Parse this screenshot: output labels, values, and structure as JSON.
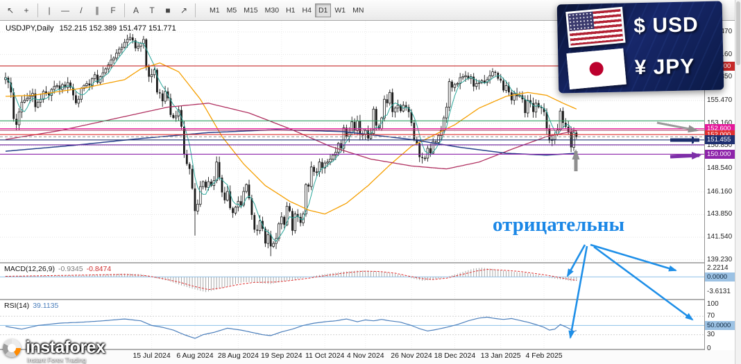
{
  "toolbar": {
    "tools": [
      {
        "name": "cursor",
        "glyph": "↖"
      },
      {
        "name": "crosshair",
        "glyph": "+"
      },
      {
        "name": "sep"
      },
      {
        "name": "vertical-line",
        "glyph": "|"
      },
      {
        "name": "horizontal-line",
        "glyph": "—"
      },
      {
        "name": "trend-line",
        "glyph": "/"
      },
      {
        "name": "channel",
        "glyph": "∥"
      },
      {
        "name": "fibonacci",
        "glyph": "F"
      },
      {
        "name": "sep"
      },
      {
        "name": "text",
        "glyph": "A"
      },
      {
        "name": "text-label",
        "glyph": "T"
      },
      {
        "name": "shapes",
        "glyph": "■"
      },
      {
        "name": "arrows",
        "glyph": "↗"
      },
      {
        "name": "sep"
      }
    ],
    "timeframes": [
      "M1",
      "M5",
      "M15",
      "M30",
      "H1",
      "H4",
      "D1",
      "W1",
      "MN"
    ],
    "active_timeframe": "D1"
  },
  "chart": {
    "symbol": "USDJPY,Daily",
    "quotes": "152.215 152.389 151.477 151.771"
  },
  "macd": {
    "label": "MACD(12,26,9)",
    "value_main": "-0.9345",
    "value_signal": "-0.8474",
    "ticks": [
      {
        "text": "2.2214",
        "value": 2.2214,
        "highlight": false
      },
      {
        "text": "0.0000",
        "value": 0,
        "highlight": true
      },
      {
        "text": "-3.6131",
        "value": -3.6131,
        "highlight": false
      }
    ]
  },
  "rsi": {
    "label": "RSI(14)",
    "value": "39.1135",
    "ticks": [
      {
        "text": "100",
        "value": 100,
        "highlight": false
      },
      {
        "text": "70",
        "value": 70,
        "highlight": false
      },
      {
        "text": "50.0000",
        "value": 50,
        "highlight": true
      },
      {
        "text": "30",
        "value": 30,
        "highlight": false
      },
      {
        "text": "0",
        "value": 0,
        "highlight": false
      }
    ]
  },
  "price_axis": {
    "ticks": [
      "162.470",
      "160.160",
      "157.850",
      "155.470",
      "153.160",
      "150.850",
      "148.540",
      "146.160",
      "143.850",
      "141.540",
      "139.230"
    ],
    "labels": [
      {
        "text": "159.000",
        "price": 159.0,
        "bg": "#c62828",
        "fg": "#ffffff"
      },
      {
        "text": "152.600",
        "price": 152.6,
        "bg": "#e5189a",
        "fg": "#ffffff"
      },
      {
        "text": "152.000",
        "price": 152.0,
        "bg": "#df3030",
        "fg": "#ffffff"
      },
      {
        "text": "150.000",
        "price": 150.0,
        "bg": "#8e24aa",
        "fg": "#ffffff"
      },
      {
        "text": "151.455",
        "price": 151.455,
        "bg": "#1f3070",
        "fg": "#ffffff"
      }
    ]
  },
  "badge": {
    "usd_symbol": "$",
    "usd_code": "USD",
    "jpy_symbol": "¥",
    "jpy_code": "JPY"
  },
  "annotation": {
    "text": "отрицательны",
    "color": "#1b87e6"
  },
  "logo": {
    "name": "instaforex",
    "tagline": "Instant Forex Trading"
  },
  "palette": {
    "bull": "#ffffff",
    "bear": "#1a1a1a",
    "wick": "#1a1a1a",
    "grid": "#e4e4e4",
    "vgrid": "#ececec",
    "macd_hist": "#a8a8a8",
    "macd_signal": "#df3030",
    "macd_zero": "#8cc0e8",
    "rsi_line": "#4a7ebb",
    "rsi_mid": "#8cc0e8",
    "rsi_dotted": "#cfcfcf",
    "chip_highlight_bg": "#9cc2e4",
    "chip_highlight_fg": "#0b2239",
    "separator": "#b0b0b0",
    "axis_border": "#8f8f8f"
  },
  "chart_data": {
    "type": "candlestick",
    "symbol": "USDJPY",
    "timeframe": "Daily",
    "last_quote": {
      "open": "152.215",
      "high": "152.389",
      "low": "151.477",
      "close": "151.771"
    },
    "ylim": [
      139.0,
      163.6
    ],
    "bar_count": 212,
    "closes": [
      157.8,
      157.3,
      156.3,
      153.6,
      153.0,
      154.3,
      155.3,
      155.5,
      155.7,
      155.9,
      156.2,
      154.8,
      155.3,
      155.6,
      156.4,
      156.2,
      156.0,
      156.6,
      156.9,
      157.0,
      156.6,
      157.1,
      156.8,
      157.3,
      156.8,
      156.0,
      155.2,
      155.6,
      156.7,
      157.0,
      157.2,
      157.0,
      157.7,
      158.1,
      157.3,
      157.9,
      158.3,
      158.7,
      159.1,
      159.6,
      159.8,
      160.3,
      160.7,
      160.9,
      161.4,
      161.7,
      161.9,
      161.6,
      160.8,
      161.0,
      161.3,
      161.7,
      158.9,
      157.9,
      158.1,
      158.6,
      156.3,
      156.2,
      155.4,
      156.4,
      155.7,
      154.0,
      153.7,
      153.9,
      154.5,
      152.8,
      150.0,
      149.0,
      148.5,
      146.5,
      144.2,
      144.9,
      146.7,
      147.2,
      146.6,
      147.2,
      146.8,
      147.3,
      149.2,
      147.6,
      146.1,
      145.3,
      146.2,
      144.5,
      144.0,
      144.6,
      145.2,
      144.8,
      146.2,
      146.9,
      145.5,
      143.8,
      142.3,
      142.2,
      143.2,
      142.4,
      140.9,
      141.8,
      140.6,
      140.9,
      141.4,
      142.9,
      143.6,
      142.8,
      144.7,
      144.2,
      142.2,
      143.9,
      143.6,
      143.0,
      143.9,
      146.9,
      146.7,
      148.7,
      148.2,
      148.2,
      149.2,
      148.6,
      149.1,
      149.2,
      149.5,
      149.9,
      150.2,
      151.1,
      150.6,
      152.7,
      151.8,
      152.2,
      153.3,
      152.4,
      153.4,
      152.0,
      152.0,
      152.4,
      151.6,
      152.1,
      154.6,
      152.9,
      152.6,
      153.7,
      155.6,
      155.2,
      156.3,
      154.3,
      154.7,
      155.0,
      154.4,
      155.0,
      154.8,
      154.3,
      153.2,
      151.5,
      151.1,
      149.7,
      149.6,
      149.6,
      150.6,
      150.1,
      151.3,
      151.2,
      151.9,
      152.4,
      153.7,
      154.8,
      157.4,
      156.8,
      157.1,
      157.2,
      157.8,
      157.9,
      158.0,
      157.7,
      157.9,
      156.9,
      157.2,
      157.3,
      157.5,
      157.3,
      157.6,
      158.0,
      158.4,
      158.3,
      157.7,
      157.5,
      156.5,
      157.0,
      156.3,
      155.5,
      156.2,
      155.9,
      156.0,
      155.6,
      154.2,
      155.5,
      155.2,
      154.3,
      155.2,
      154.8,
      154.7,
      154.3,
      152.6,
      151.4,
      151.5,
      152.0,
      152.5,
      154.4,
      153.2,
      152.8,
      152.3,
      150.7,
      152.2,
      151.77
    ],
    "low_overrides": {
      "70": 141.7,
      "98": 139.6
    },
    "moving_averages": [
      {
        "name": "fast-ma",
        "color": "#2aa79b",
        "width": 1.0,
        "period": 5
      },
      {
        "name": "medium-ma",
        "color": "#f59f00",
        "width": 1.3,
        "points": [
          [
            0,
            155.9
          ],
          [
            10,
            156.0
          ],
          [
            30,
            156.8
          ],
          [
            44,
            157.6
          ],
          [
            50,
            158.7
          ],
          [
            57,
            159.3
          ],
          [
            64,
            158.4
          ],
          [
            72,
            155.6
          ],
          [
            80,
            151.8
          ],
          [
            88,
            149.0
          ],
          [
            96,
            146.8
          ],
          [
            105,
            145.2
          ],
          [
            112,
            144.3
          ],
          [
            118,
            143.9
          ],
          [
            126,
            145.0
          ],
          [
            134,
            146.8
          ],
          [
            142,
            148.9
          ],
          [
            150,
            150.8
          ],
          [
            158,
            151.9
          ],
          [
            166,
            153.0
          ],
          [
            175,
            154.7
          ],
          [
            185,
            155.9
          ],
          [
            193,
            156.3
          ],
          [
            200,
            156.0
          ],
          [
            206,
            155.2
          ],
          [
            211,
            154.6
          ]
        ]
      },
      {
        "name": "slow-ma",
        "color": "#b03060",
        "width": 1.3,
        "points": [
          [
            0,
            151.5
          ],
          [
            20,
            152.4
          ],
          [
            40,
            153.6
          ],
          [
            60,
            154.8
          ],
          [
            75,
            155.2
          ],
          [
            90,
            154.2
          ],
          [
            105,
            152.6
          ],
          [
            120,
            150.8
          ],
          [
            135,
            149.5
          ],
          [
            150,
            148.8
          ],
          [
            163,
            148.5
          ],
          [
            175,
            149.2
          ],
          [
            188,
            150.6
          ],
          [
            200,
            151.8
          ],
          [
            211,
            152.4
          ]
        ]
      },
      {
        "name": "slowest-ma",
        "color": "#27408b",
        "width": 1.5,
        "points": [
          [
            0,
            150.3
          ],
          [
            25,
            150.9
          ],
          [
            50,
            151.6
          ],
          [
            75,
            152.2
          ],
          [
            100,
            152.5
          ],
          [
            125,
            152.3
          ],
          [
            150,
            151.5
          ],
          [
            168,
            150.7
          ],
          [
            185,
            150.1
          ],
          [
            200,
            149.9
          ],
          [
            211,
            150.1
          ]
        ]
      }
    ],
    "levels": [
      {
        "price": 159.0,
        "color": "#c62828"
      },
      {
        "price": 153.4,
        "color": "#2e9e60"
      },
      {
        "price": 152.6,
        "color": "#e5189a"
      },
      {
        "price": 152.45,
        "color": "#b03060"
      },
      {
        "price": 152.0,
        "color": "#df3030"
      },
      {
        "price": 151.77,
        "color": "#9a9a9a",
        "dash": "4,3"
      },
      {
        "price": 151.455,
        "color": "#1f3070"
      },
      {
        "price": 150.95,
        "color": "#6a1b9a"
      },
      {
        "price": 150.0,
        "color": "#8e24aa"
      }
    ],
    "macd": {
      "ylim": [
        -5.2,
        3.2
      ],
      "points": [
        [
          0,
          0.2
        ],
        [
          15,
          0.3
        ],
        [
          30,
          0.5
        ],
        [
          44,
          0.8
        ],
        [
          50,
          0.7
        ],
        [
          55,
          -0.2
        ],
        [
          60,
          -0.9
        ],
        [
          64,
          -1.8
        ],
        [
          68,
          -2.6
        ],
        [
          72,
          -3.3
        ],
        [
          74,
          -3.6
        ],
        [
          78,
          -3.0
        ],
        [
          82,
          -2.2
        ],
        [
          88,
          -1.2
        ],
        [
          93,
          -1.4
        ],
        [
          98,
          -1.7
        ],
        [
          103,
          -1.0
        ],
        [
          108,
          -0.5
        ],
        [
          112,
          0.0
        ],
        [
          118,
          0.7
        ],
        [
          124,
          1.2
        ],
        [
          130,
          1.5
        ],
        [
          134,
          1.5
        ],
        [
          140,
          1.2
        ],
        [
          146,
          0.5
        ],
        [
          150,
          -0.3
        ],
        [
          154,
          -0.9
        ],
        [
          158,
          -0.7
        ],
        [
          162,
          -0.2
        ],
        [
          166,
          0.6
        ],
        [
          170,
          1.4
        ],
        [
          173,
          2.0
        ],
        [
          176,
          2.2
        ],
        [
          180,
          1.9
        ],
        [
          184,
          1.5
        ],
        [
          188,
          1.2
        ],
        [
          192,
          1.0
        ],
        [
          195,
          0.7
        ],
        [
          198,
          0.3
        ],
        [
          201,
          -0.2
        ],
        [
          204,
          -0.5
        ],
        [
          207,
          -0.7
        ],
        [
          209,
          -1.0
        ],
        [
          211,
          -0.93
        ]
      ],
      "signal_points": [
        [
          0,
          0.15
        ],
        [
          20,
          0.35
        ],
        [
          44,
          0.6
        ],
        [
          52,
          0.3
        ],
        [
          58,
          -0.4
        ],
        [
          64,
          -1.2
        ],
        [
          70,
          -2.3
        ],
        [
          75,
          -3.0
        ],
        [
          80,
          -2.6
        ],
        [
          86,
          -1.8
        ],
        [
          92,
          -1.3
        ],
        [
          100,
          -1.2
        ],
        [
          106,
          -0.8
        ],
        [
          112,
          -0.3
        ],
        [
          118,
          0.3
        ],
        [
          126,
          1.0
        ],
        [
          132,
          1.35
        ],
        [
          138,
          1.3
        ],
        [
          144,
          0.9
        ],
        [
          149,
          0.2
        ],
        [
          154,
          -0.4
        ],
        [
          158,
          -0.6
        ],
        [
          163,
          -0.3
        ],
        [
          168,
          0.5
        ],
        [
          174,
          1.4
        ],
        [
          178,
          1.8
        ],
        [
          184,
          1.6
        ],
        [
          190,
          1.3
        ],
        [
          196,
          0.8
        ],
        [
          201,
          0.3
        ],
        [
          206,
          -0.3
        ],
        [
          211,
          -0.85
        ]
      ]
    },
    "rsi": {
      "ylim": [
        -2,
        104.7
      ],
      "levels": [
        70,
        50,
        30
      ],
      "points": [
        [
          0,
          48
        ],
        [
          6,
          42
        ],
        [
          12,
          50
        ],
        [
          20,
          55
        ],
        [
          28,
          57
        ],
        [
          36,
          60
        ],
        [
          44,
          64
        ],
        [
          50,
          60
        ],
        [
          54,
          50
        ],
        [
          58,
          46
        ],
        [
          62,
          40
        ],
        [
          66,
          30
        ],
        [
          70,
          22
        ],
        [
          73,
          30
        ],
        [
          77,
          35
        ],
        [
          82,
          44
        ],
        [
          87,
          40
        ],
        [
          91,
          35
        ],
        [
          95,
          30
        ],
        [
          98,
          28
        ],
        [
          102,
          36
        ],
        [
          106,
          42
        ],
        [
          110,
          50
        ],
        [
          114,
          55
        ],
        [
          118,
          58
        ],
        [
          122,
          60
        ],
        [
          126,
          64
        ],
        [
          130,
          58
        ],
        [
          133,
          62
        ],
        [
          136,
          60
        ],
        [
          139,
          63
        ],
        [
          142,
          60
        ],
        [
          146,
          57
        ],
        [
          150,
          50
        ],
        [
          153,
          43
        ],
        [
          156,
          38
        ],
        [
          159,
          41
        ],
        [
          163,
          46
        ],
        [
          167,
          52
        ],
        [
          171,
          60
        ],
        [
          175,
          66
        ],
        [
          178,
          68
        ],
        [
          181,
          65
        ],
        [
          184,
          63
        ],
        [
          187,
          65
        ],
        [
          190,
          61
        ],
        [
          193,
          57
        ],
        [
          196,
          52
        ],
        [
          199,
          46
        ],
        [
          201,
          40
        ],
        [
          203,
          42
        ],
        [
          205,
          52
        ],
        [
          207,
          47
        ],
        [
          209,
          41
        ],
        [
          210,
          37
        ],
        [
          211,
          39.1
        ]
      ]
    },
    "date_labels": [
      {
        "text": "15 Jul 2024",
        "index": 54
      },
      {
        "text": "6 Aug 2024",
        "index": 70
      },
      {
        "text": "28 Aug 2024",
        "index": 86
      },
      {
        "text": "19 Sep 2024",
        "index": 102
      },
      {
        "text": "11 Oct 2024",
        "index": 118
      },
      {
        "text": "4 Nov 2024",
        "index": 133
      },
      {
        "text": "26 Nov 2024",
        "index": 150
      },
      {
        "text": "18 Dec 2024",
        "index": 166
      },
      {
        "text": "13 Jan 2025",
        "index": 183
      },
      {
        "text": "4 Feb 2025",
        "index": 199
      }
    ]
  }
}
